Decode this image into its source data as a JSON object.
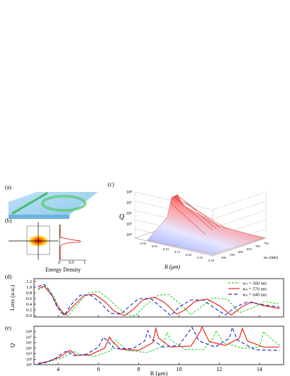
{
  "panels": {
    "a": "(a)",
    "b": "(b)",
    "c": "(c)",
    "d": "(d)",
    "e": "(e)"
  },
  "panel_b": {
    "xlabel": "Energy Density",
    "ticks": [
      "0",
      "0.5",
      "1"
    ]
  },
  "panel_c": {
    "zlabel": "Q",
    "xlabel": "R (μm)",
    "ylabel": "wₙ (nm)",
    "z_ticks": [
      "10⁴",
      "10⁵",
      "10⁶",
      "10⁷",
      "10⁸"
    ],
    "r_ticks": [
      "0.00",
      "0.05",
      "0.10",
      "0.15",
      "0.20",
      "0.25",
      "0.30"
    ],
    "w_ticks": [
      "500",
      "550",
      "600",
      "650",
      "700",
      "750"
    ]
  },
  "chart_data": [
    {
      "type": "line",
      "panel": "d",
      "ylabel": "Loss (a.u.)",
      "xlim": [
        2.8,
        15.2
      ],
      "ylim": [
        -0.05,
        1.3
      ],
      "x_ticks": [
        4,
        6,
        8,
        10,
        12,
        14
      ],
      "y_ticks": [
        "0.0",
        "0.2",
        "0.4",
        "0.6",
        "0.8",
        "1.0",
        "1.2"
      ],
      "y_tick_values": [
        0,
        0.2,
        0.4,
        0.6,
        0.8,
        1.0,
        1.2
      ],
      "series": [
        {
          "name": "wₙ = 500 nm",
          "color": "#2fd12f",
          "dash": "3,2",
          "x": [
            3.0,
            3.4,
            3.8,
            4.15,
            4.5,
            4.9,
            5.5,
            6.0,
            6.5,
            7.0,
            7.5,
            7.85,
            8.3,
            9.0,
            9.5,
            10.0,
            10.6,
            11.1,
            11.7,
            12.4,
            13.0,
            13.6,
            14.3,
            15.0
          ],
          "y": [
            0.9,
            1.05,
            0.65,
            0.08,
            0.0,
            0.35,
            0.8,
            0.85,
            0.6,
            0.25,
            0.02,
            0.0,
            0.35,
            0.72,
            0.74,
            0.45,
            0.03,
            0.3,
            0.62,
            0.58,
            0.1,
            0.25,
            0.5,
            0.4
          ]
        },
        {
          "name": "wₙ = 570 nm",
          "color": "#e8281e",
          "dash": "",
          "x": [
            3.0,
            3.3,
            3.7,
            4.0,
            4.35,
            4.7,
            5.3,
            5.8,
            6.3,
            6.8,
            7.3,
            7.7,
            8.2,
            8.8,
            9.3,
            9.9,
            10.3,
            10.8,
            11.4,
            12.0,
            12.6,
            13.1,
            13.6,
            14.2,
            15.0
          ],
          "y": [
            0.95,
            1.03,
            0.7,
            0.3,
            0.02,
            0.3,
            0.72,
            0.75,
            0.5,
            0.15,
            0.0,
            0.2,
            0.55,
            0.65,
            0.45,
            0.05,
            0.2,
            0.5,
            0.58,
            0.35,
            0.02,
            0.3,
            0.48,
            0.35,
            0.25
          ]
        },
        {
          "name": "wₙ = 640 nm",
          "color": "#1a28c8",
          "dash": "5,3",
          "x": [
            3.0,
            3.3,
            3.6,
            3.95,
            4.3,
            4.6,
            5.1,
            5.6,
            6.1,
            6.6,
            7.1,
            7.5,
            8.0,
            8.6,
            9.1,
            9.6,
            10.0,
            10.6,
            11.2,
            11.8,
            12.3,
            12.8,
            13.4,
            14.0,
            15.0
          ],
          "y": [
            1.02,
            1.1,
            0.85,
            0.3,
            0.0,
            0.35,
            0.72,
            0.72,
            0.45,
            0.08,
            0.05,
            0.3,
            0.6,
            0.6,
            0.3,
            0.0,
            0.3,
            0.55,
            0.55,
            0.25,
            0.02,
            0.3,
            0.48,
            0.4,
            0.3
          ]
        }
      ]
    },
    {
      "type": "line",
      "panel": "e",
      "ylabel": "Q",
      "xlabel": "R (μm)",
      "yscale": "log",
      "xlim": [
        2.8,
        15.2
      ],
      "ylim": [
        2,
        9
      ],
      "x_ticks": [
        "4",
        "6",
        "8",
        "10",
        "12",
        "14"
      ],
      "x_tick_values": [
        4,
        6,
        8,
        10,
        12,
        14
      ],
      "y_ticks": [
        "10²",
        "10³",
        "10⁴",
        "10⁵",
        "10⁶",
        "10⁷",
        "10⁸"
      ],
      "y_tick_values": [
        2,
        3,
        4,
        5,
        6,
        7,
        8
      ],
      "series": [
        {
          "name": "wₙ = 500 nm",
          "color": "#2fd12f",
          "dash": "3,2",
          "x": [
            3.0,
            3.6,
            4.2,
            4.6,
            4.75,
            5.1,
            5.8,
            6.6,
            6.85,
            7.0,
            7.4,
            8.4,
            9.2,
            9.4,
            9.6,
            10.3,
            11.2,
            11.7,
            11.85,
            12.2,
            13.2,
            14.0,
            14.2,
            14.5,
            15.0
          ],
          "y": [
            2.2,
            2.6,
            3.2,
            4.0,
            4.5,
            3.8,
            3.5,
            4.5,
            6.5,
            6.0,
            4.6,
            4.2,
            5.3,
            7.8,
            6.5,
            4.8,
            4.7,
            6.8,
            8.2,
            6.0,
            5.0,
            5.2,
            8.0,
            7.0,
            5.5
          ]
        },
        {
          "name": "wₙ = 570 nm",
          "color": "#e8281e",
          "dash": "",
          "x": [
            3.0,
            3.5,
            4.1,
            4.45,
            4.6,
            4.9,
            5.6,
            6.3,
            6.55,
            6.7,
            7.1,
            8.0,
            8.7,
            8.85,
            9.0,
            9.6,
            10.6,
            11.05,
            11.15,
            11.5,
            12.3,
            13.0,
            13.15,
            13.4,
            14.2,
            15.0
          ],
          "y": [
            2.2,
            2.6,
            3.4,
            4.3,
            4.6,
            3.7,
            3.8,
            5.0,
            7.0,
            6.2,
            4.8,
            4.6,
            6.0,
            8.6,
            6.8,
            5.2,
            5.4,
            8.0,
            8.9,
            6.2,
            5.5,
            6.8,
            8.6,
            6.3,
            5.2,
            5.2
          ]
        },
        {
          "name": "wₙ = 640 nm",
          "color": "#1a28c8",
          "dash": "5,3",
          "x": [
            3.0,
            3.4,
            3.9,
            4.25,
            4.45,
            4.8,
            5.4,
            6.0,
            6.25,
            6.4,
            6.8,
            7.7,
            8.3,
            8.45,
            8.6,
            9.2,
            10.0,
            10.55,
            10.65,
            11.0,
            11.8,
            12.5,
            12.65,
            12.9,
            13.8,
            15.0
          ],
          "y": [
            2.1,
            2.4,
            3.2,
            4.2,
            4.5,
            3.6,
            3.9,
            5.2,
            7.0,
            6.5,
            4.9,
            4.9,
            6.3,
            8.2,
            6.8,
            5.2,
            5.5,
            8.3,
            8.8,
            6.3,
            5.2,
            6.8,
            8.8,
            6.5,
            4.7,
            4.6
          ]
        }
      ]
    }
  ]
}
